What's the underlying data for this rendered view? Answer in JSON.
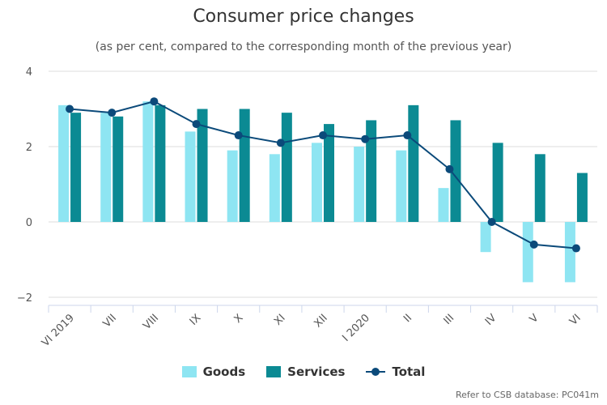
{
  "chart_data": {
    "type": "bar",
    "title": "Consumer price changes",
    "subtitle": "(as per cent, compared to the corresponding month of the previous year)",
    "categories": [
      "VI 2019",
      "VII",
      "VIII",
      "IX",
      "X",
      "XI",
      "XII",
      "I 2020",
      "II",
      "III",
      "IV",
      "V",
      "VI"
    ],
    "series": [
      {
        "name": "Goods",
        "kind": "bar",
        "color": "#8ee5f2",
        "values": [
          3.1,
          2.9,
          3.2,
          2.4,
          1.9,
          1.8,
          2.1,
          2.0,
          1.9,
          0.9,
          -0.8,
          -1.6,
          -1.6
        ]
      },
      {
        "name": "Services",
        "kind": "bar",
        "color": "#0b8a93",
        "values": [
          2.9,
          2.8,
          3.1,
          3.0,
          3.0,
          2.9,
          2.6,
          2.7,
          3.1,
          2.7,
          2.1,
          1.8,
          1.3
        ]
      },
      {
        "name": "Total",
        "kind": "line",
        "color": "#0b4a7a",
        "values": [
          3.0,
          2.9,
          3.2,
          2.6,
          2.3,
          2.1,
          2.3,
          2.2,
          2.3,
          1.4,
          0.0,
          -0.6,
          -0.7
        ]
      }
    ],
    "ylim": [
      -2,
      4
    ],
    "yticks": [
      4,
      2,
      0,
      -2
    ],
    "ytick_labels": [
      "4",
      "2",
      "0",
      "−2"
    ],
    "grid": true,
    "legend_position": "bottom-center"
  },
  "credit": "Refer to CSB database: PC041m"
}
